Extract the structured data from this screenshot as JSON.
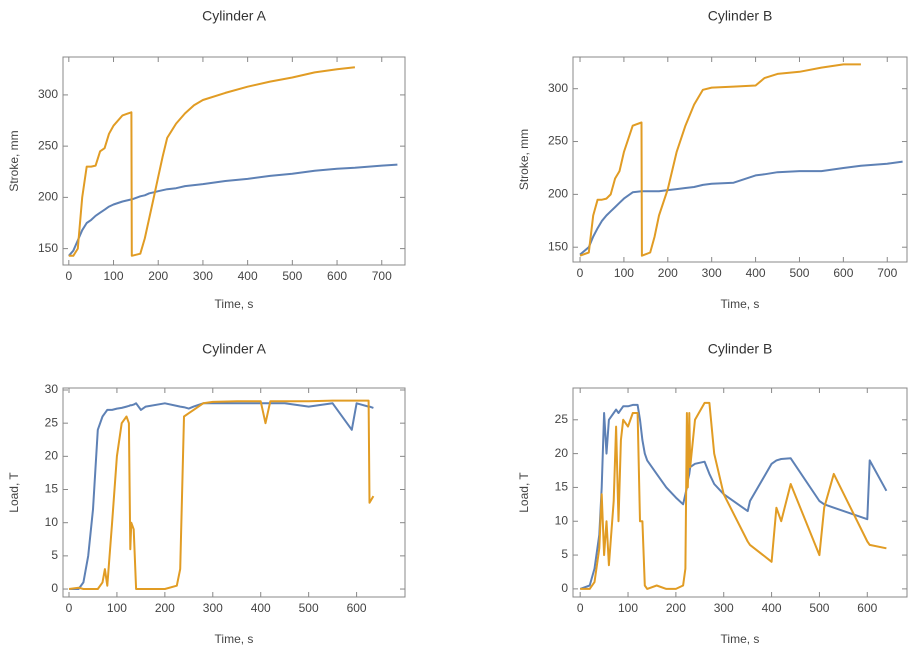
{
  "chart_data": [
    {
      "type": "line",
      "title": "Cylinder A",
      "x_label": "Time, s",
      "y_label": "Stroke, mm",
      "x": [
        0,
        10,
        20,
        30,
        40,
        50,
        60,
        70,
        80,
        90,
        100,
        120,
        140,
        141,
        160,
        170,
        180,
        190,
        200,
        210,
        220,
        240,
        260,
        280,
        300,
        350,
        400,
        450,
        500,
        550,
        600,
        640,
        700,
        735
      ],
      "series": [
        {
          "color": "#5e81b5",
          "values": [
            143,
            148,
            158,
            168,
            175,
            178,
            182,
            185,
            188,
            191,
            193,
            196,
            198,
            198,
            201,
            202,
            204,
            205,
            206,
            207,
            208,
            209,
            211,
            212,
            213,
            216,
            218,
            221,
            223,
            226,
            228,
            229,
            231,
            232
          ]
        },
        {
          "color": "#e19c24",
          "values": [
            143,
            143,
            150,
            200,
            230,
            230,
            231,
            245,
            248,
            262,
            270,
            280,
            283,
            143,
            145,
            160,
            180,
            200,
            220,
            240,
            258,
            272,
            282,
            290,
            295,
            302,
            308,
            313,
            317,
            322,
            325,
            327,
            null,
            null
          ]
        }
      ],
      "xlim": [
        -13,
        752
      ],
      "ylim": [
        134,
        337
      ],
      "xticks": [
        0,
        100,
        200,
        300,
        400,
        500,
        600,
        700
      ],
      "yticks": [
        150,
        200,
        250,
        300
      ]
    },
    {
      "type": "line",
      "title": "Cylinder B",
      "x_label": "Time, s",
      "y_label": "Stroke, mm",
      "x": [
        0,
        20,
        30,
        40,
        50,
        60,
        70,
        80,
        90,
        100,
        120,
        140,
        141,
        160,
        170,
        180,
        200,
        220,
        240,
        260,
        280,
        300,
        350,
        400,
        420,
        450,
        500,
        550,
        600,
        640,
        700,
        735
      ],
      "series": [
        {
          "color": "#5e81b5",
          "values": [
            143,
            150,
            160,
            168,
            175,
            180,
            184,
            188,
            192,
            196,
            202,
            203,
            203,
            203,
            203,
            203,
            204,
            205,
            206,
            207,
            209,
            210,
            211,
            218,
            219,
            221,
            222,
            222,
            225,
            227,
            229,
            231
          ]
        },
        {
          "color": "#e19c24",
          "values": [
            142,
            145,
            180,
            195,
            195,
            196,
            200,
            215,
            222,
            240,
            265,
            268,
            142,
            145,
            160,
            180,
            205,
            240,
            265,
            285,
            299,
            301,
            302,
            303,
            310,
            314,
            316,
            320,
            323,
            323,
            null,
            null
          ]
        }
      ],
      "xlim": [
        -16,
        745
      ],
      "ylim": [
        136,
        330
      ],
      "xticks": [
        0,
        100,
        200,
        300,
        400,
        500,
        600,
        700
      ],
      "yticks": [
        150,
        200,
        250,
        300
      ]
    },
    {
      "type": "line",
      "title": "Cylinder A",
      "x_label": "Time, s",
      "y_label": "Load, T",
      "x": [
        0,
        20,
        30,
        40,
        50,
        55,
        60,
        70,
        75,
        80,
        90,
        100,
        110,
        120,
        125,
        128,
        130,
        135,
        140,
        150,
        160,
        200,
        225,
        232,
        240,
        250,
        260,
        280,
        300,
        350,
        400,
        410,
        420,
        450,
        500,
        550,
        590,
        600,
        625,
        627,
        635
      ],
      "series": [
        {
          "color": "#5e81b5",
          "values": [
            0,
            0,
            1,
            5,
            12,
            18,
            24,
            26,
            26.5,
            27,
            27,
            27.2,
            27.3,
            27.5,
            27.6,
            27.7,
            27.7,
            27.8,
            28,
            27,
            27.5,
            28,
            27.6,
            27.5,
            27.4,
            27.2,
            27.5,
            28,
            28,
            28,
            28,
            28,
            28,
            28,
            27.5,
            28,
            24,
            28,
            27.5,
            27.5,
            27.3
          ]
        },
        {
          "color": "#e19c24",
          "values": [
            0,
            0.2,
            0,
            0,
            0,
            0,
            0,
            1,
            3,
            0.5,
            10,
            20,
            25,
            26,
            25,
            6,
            10,
            9,
            0,
            0,
            0,
            0,
            0.5,
            3,
            26,
            26.5,
            27,
            28,
            28.2,
            28.3,
            28.3,
            25,
            28.3,
            28.3,
            28.3,
            28.4,
            28.4,
            28.4,
            28.4,
            13,
            14
          ]
        }
      ],
      "xlim": [
        -12.5,
        701
      ],
      "ylim": [
        -1.2,
        30.3
      ],
      "xticks": [
        0,
        100,
        200,
        300,
        400,
        500,
        600
      ],
      "yticks": [
        0,
        5,
        10,
        15,
        20,
        25,
        30
      ]
    },
    {
      "type": "line",
      "title": "Cylinder B",
      "x_label": "Time, s",
      "y_label": "Load, T",
      "x": [
        0,
        20,
        30,
        40,
        45,
        50,
        55,
        60,
        70,
        75,
        80,
        85,
        90,
        100,
        110,
        120,
        125,
        130,
        135,
        140,
        160,
        180,
        200,
        215,
        220,
        223,
        225,
        228,
        230,
        240,
        260,
        270,
        280,
        300,
        350,
        355,
        400,
        410,
        420,
        440,
        500,
        510,
        530,
        600,
        605,
        640
      ],
      "series": [
        {
          "color": "#5e81b5",
          "values": [
            0,
            0.5,
            3,
            8,
            15,
            26,
            20,
            25,
            26,
            26.5,
            26,
            26.5,
            27,
            27,
            27.2,
            27.2,
            25,
            22,
            20,
            19,
            17,
            15,
            13.5,
            12.5,
            14,
            15,
            16,
            17,
            18,
            18.5,
            18.8,
            17,
            15.5,
            14,
            11.5,
            13,
            18.5,
            19,
            19.2,
            19.3,
            13,
            12.5,
            12,
            10.3,
            19,
            14.5
          ]
        },
        {
          "color": "#e19c24",
          "values": [
            0,
            0,
            1,
            6,
            14,
            5,
            10,
            3.5,
            13,
            24,
            10,
            22,
            25,
            24,
            26,
            26,
            10,
            10,
            0.5,
            0,
            0.5,
            0,
            0,
            0.5,
            3,
            26,
            15,
            26,
            18,
            25,
            27.5,
            27.5,
            20,
            14,
            7,
            6.5,
            4,
            12,
            10,
            15.5,
            5,
            12,
            17,
            7,
            6.5,
            6
          ]
        }
      ],
      "xlim": [
        -15,
        683
      ],
      "ylim": [
        -1.2,
        29.7
      ],
      "xticks": [
        0,
        100,
        200,
        300,
        400,
        500,
        600
      ],
      "yticks": [
        0,
        5,
        10,
        15,
        20,
        25
      ]
    }
  ]
}
